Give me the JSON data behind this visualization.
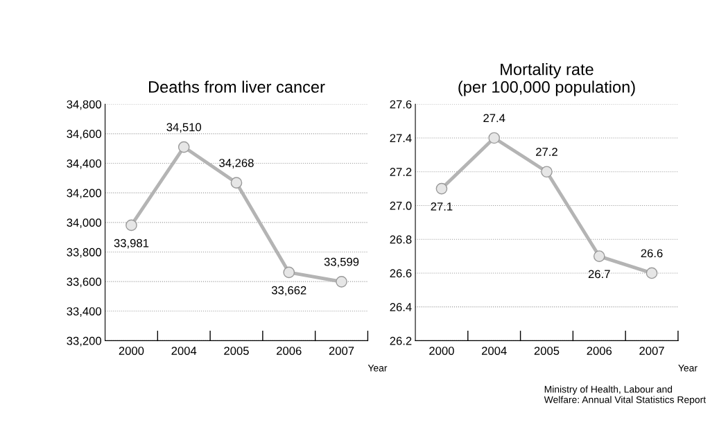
{
  "chart_data": [
    {
      "type": "line",
      "title": "Deaths from liver cancer",
      "xlabel": "Year",
      "categories": [
        "2000",
        "2004",
        "2005",
        "2006",
        "2007"
      ],
      "series": [
        {
          "color": "#b4b4b4",
          "values": [
            33981,
            34510,
            34268,
            33662,
            33599
          ],
          "value_labels": [
            "33,981",
            "34,510",
            "34,268",
            "33,662",
            "33,599"
          ]
        }
      ],
      "ylim": [
        33200,
        34800
      ],
      "yticks": [
        {
          "value": 33200,
          "label": "33,200"
        },
        {
          "value": 33400,
          "label": "33,400"
        },
        {
          "value": 33600,
          "label": "33,600"
        },
        {
          "value": 33800,
          "label": "33,800"
        },
        {
          "value": 34000,
          "label": "34,000"
        },
        {
          "value": 34200,
          "label": "34,200"
        },
        {
          "value": 34400,
          "label": "34,400"
        },
        {
          "value": 34600,
          "label": "34,600"
        },
        {
          "value": 34800,
          "label": "34,800"
        }
      ],
      "grid": "y",
      "marker": "circle",
      "line_style": "solid"
    },
    {
      "type": "line",
      "title": "Mortality rate\n(per 100,000 population)",
      "xlabel": "Year",
      "categories": [
        "2000",
        "2004",
        "2005",
        "2006",
        "2007"
      ],
      "series": [
        {
          "color": "#b4b4b4",
          "values": [
            27.1,
            27.4,
            27.2,
            26.7,
            26.6
          ]
        }
      ],
      "ylim": [
        26.2,
        27.6
      ],
      "yticks": [
        {
          "value": 26.2,
          "label": "26.2"
        },
        {
          "value": 26.4,
          "label": "26.4"
        },
        {
          "value": 26.6,
          "label": "26.6"
        },
        {
          "value": 26.8,
          "label": "26.8"
        },
        {
          "value": 27.0,
          "label": "27.0"
        },
        {
          "value": 27.2,
          "label": "27.2"
        },
        {
          "value": 27.4,
          "label": "27.4"
        },
        {
          "value": 27.6,
          "label": "27.6"
        }
      ],
      "grid": "y",
      "marker": "circle",
      "line_style": "solid",
      "data_labels": true,
      "annotations": [
        "Ministry of Health, Labour and Welfare: Annual Vital Statistics Report"
      ]
    }
  ]
}
